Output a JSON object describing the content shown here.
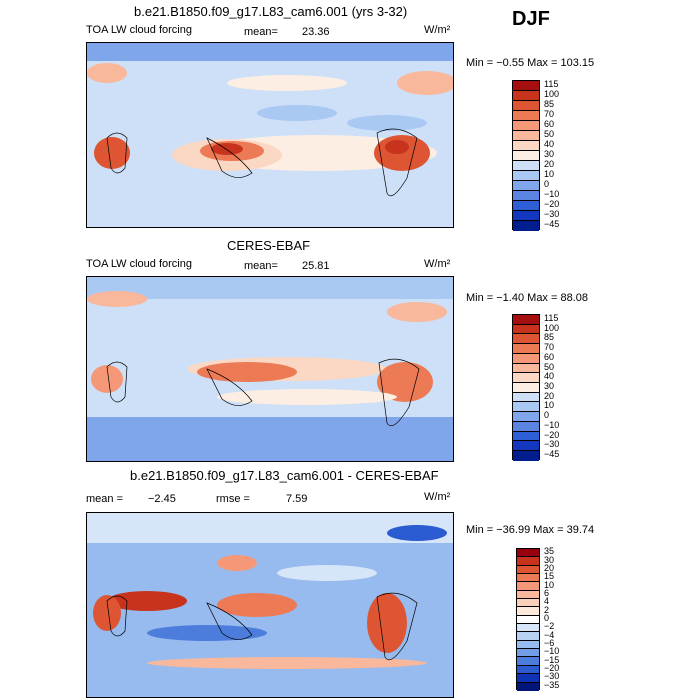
{
  "season": "DJF",
  "panels": [
    {
      "title": "b.e21.B1850.f09_g17.L83_cam6.001 (yrs 3-32)",
      "left_label": "TOA LW cloud forcing",
      "stat1": "mean=",
      "stat1_val": "23.36",
      "stat2": "",
      "stat2_val": "",
      "units": "W/m²",
      "minmax": "Min =  −0.55 Max = 103.15",
      "levels": [
        "115",
        "100",
        "85",
        "70",
        "60",
        "50",
        "40",
        "30",
        "20",
        "10",
        "0",
        "−10",
        "−20",
        "−30",
        "−45"
      ],
      "colors": [
        "#a50f0f",
        "#c8331e",
        "#dd5533",
        "#ec7a55",
        "#f59877",
        "#f9b89b",
        "#fbd8c4",
        "#fdeee4",
        "#cde0f7",
        "#a9c8f2",
        "#7fa6ea",
        "#5a84e0",
        "#2f5fd6",
        "#1437c0",
        "#021d8e"
      ]
    },
    {
      "title": "CERES-EBAF",
      "left_label": "TOA LW cloud forcing",
      "stat1": "mean=",
      "stat1_val": "25.81",
      "stat2": "",
      "stat2_val": "",
      "units": "W/m²",
      "minmax": "Min =  −1.40 Max =  88.08",
      "levels": [
        "115",
        "100",
        "85",
        "70",
        "60",
        "50",
        "40",
        "30",
        "20",
        "10",
        "0",
        "−10",
        "−20",
        "−30",
        "−45"
      ],
      "colors": [
        "#a50f0f",
        "#c8331e",
        "#dd5533",
        "#ec7a55",
        "#f59877",
        "#f9b89b",
        "#fbd8c4",
        "#fdeee4",
        "#cde0f7",
        "#a9c8f2",
        "#7fa6ea",
        "#5a84e0",
        "#2f5fd6",
        "#1437c0",
        "#021d8e"
      ]
    },
    {
      "title": "b.e21.B1850.f09_g17.L83_cam6.001 - CERES-EBAF",
      "left_label": "",
      "stat1": "mean =",
      "stat1_val": "−2.45",
      "stat2": "rmse =",
      "stat2_val": "7.59",
      "units": "W/m²",
      "minmax": "Min = −36.99 Max =  39.74",
      "levels": [
        "35",
        "30",
        "20",
        "15",
        "10",
        "6",
        "4",
        "2",
        "0",
        "−2",
        "−4",
        "−6",
        "−10",
        "−15",
        "−20",
        "−30",
        "−35"
      ],
      "colors": [
        "#99000d",
        "#c8331e",
        "#dd5533",
        "#ec7a55",
        "#f59877",
        "#f9b89b",
        "#fbd0bb",
        "#fde8dc",
        "#ffffff",
        "#d6e6f8",
        "#b7d1f3",
        "#97bbee",
        "#739de6",
        "#4d7ddc",
        "#2a5bd1",
        "#0f33b5",
        "#02167a"
      ]
    }
  ]
}
